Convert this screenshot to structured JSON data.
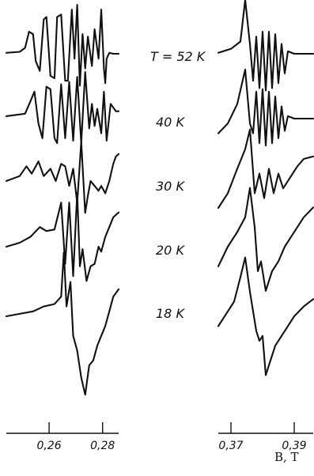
{
  "chart_data": {
    "type": "line",
    "panels": [
      {
        "name": "low-field",
        "xlim": [
          0.244,
          0.286
        ],
        "x_ticks": [
          0.26,
          0.28
        ],
        "tick_labels": [
          "0,26",
          "0,28"
        ],
        "xlabel": "",
        "series": [
          {
            "name": "T = 52 K",
            "x": [
              0.244,
              0.249,
              0.251,
              0.2525,
              0.254,
              0.255,
              0.2565,
              0.258,
              0.259,
              0.2605,
              0.262,
              0.263,
              0.2645,
              0.266,
              0.267,
              0.2685,
              0.2695,
              0.2705,
              0.2715,
              0.2725,
              0.2735,
              0.2745,
              0.276,
              0.277,
              0.2785,
              0.2795,
              0.2805,
              0.281,
              0.2815,
              0.2825,
              0.284,
              0.286
            ],
            "y": [
              0.02,
              0.04,
              0.12,
              0.45,
              0.4,
              -0.15,
              -0.35,
              0.7,
              0.75,
              -0.45,
              -0.5,
              0.75,
              0.8,
              -0.55,
              -0.55,
              0.9,
              -0.1,
              1.0,
              -0.65,
              0.4,
              -0.3,
              0.35,
              -0.25,
              0.5,
              -0.1,
              0.9,
              -0.3,
              -0.6,
              -0.1,
              0.02,
              0.0,
              0.0
            ]
          },
          {
            "name": "40 K",
            "x": [
              0.244,
              0.251,
              0.253,
              0.2545,
              0.256,
              0.2575,
              0.259,
              0.2605,
              0.262,
              0.263,
              0.2645,
              0.266,
              0.2675,
              0.269,
              0.2705,
              0.272,
              0.2735,
              0.275,
              0.276,
              0.277,
              0.278,
              0.2795,
              0.2805,
              0.2815,
              0.283,
              0.285,
              0.286
            ],
            "y": [
              0.05,
              0.1,
              0.35,
              0.55,
              -0.1,
              -0.4,
              0.65,
              0.6,
              -0.4,
              -0.5,
              0.7,
              -0.4,
              0.75,
              -0.45,
              0.85,
              -0.5,
              0.95,
              -0.2,
              0.3,
              -0.15,
              0.2,
              -0.3,
              0.55,
              -0.45,
              0.3,
              0.15,
              0.15
            ]
          },
          {
            "name": "30 K",
            "x": [
              0.244,
              0.249,
              0.2515,
              0.2535,
              0.256,
              0.258,
              0.2605,
              0.2625,
              0.2645,
              0.266,
              0.2675,
              0.269,
              0.2705,
              0.272,
              0.2735,
              0.2745,
              0.2755,
              0.277,
              0.2785,
              0.2795,
              0.281,
              0.2825,
              0.284,
              0.285,
              0.286
            ],
            "y": [
              0.05,
              0.15,
              0.35,
              0.2,
              0.45,
              0.15,
              0.3,
              0.05,
              0.4,
              0.35,
              -0.05,
              0.3,
              -0.4,
              0.85,
              -0.6,
              -0.25,
              0.05,
              -0.05,
              -0.15,
              -0.05,
              -0.2,
              0.05,
              0.4,
              0.55,
              0.6
            ]
          },
          {
            "name": "20 K",
            "x": [
              0.244,
              0.249,
              0.253,
              0.2565,
              0.259,
              0.262,
              0.2645,
              0.266,
              0.2675,
              0.269,
              0.2705,
              0.2715,
              0.2725,
              0.274,
              0.2755,
              0.277,
              0.2785,
              0.2795,
              0.281,
              0.2825,
              0.284,
              0.286
            ],
            "y": [
              0.0,
              0.08,
              0.2,
              0.4,
              0.32,
              0.35,
              0.9,
              -0.35,
              0.9,
              -0.6,
              1.1,
              -0.4,
              -0.05,
              -0.7,
              -0.4,
              -0.35,
              0.0,
              -0.1,
              0.2,
              0.4,
              0.6,
              0.7
            ]
          },
          {
            "name": "18 K",
            "x": [
              0.244,
              0.249,
              0.254,
              0.258,
              0.262,
              0.2645,
              0.2655,
              0.2665,
              0.268,
              0.269,
              0.2705,
              0.272,
              0.2735,
              0.275,
              0.2765,
              0.278,
              0.2795,
              0.281,
              0.2825,
              0.284,
              0.286
            ],
            "y": [
              0.0,
              0.05,
              0.1,
              0.2,
              0.25,
              0.4,
              1.3,
              0.2,
              0.7,
              -0.4,
              -0.7,
              -1.25,
              -1.6,
              -1.0,
              -0.9,
              -0.6,
              -0.4,
              -0.2,
              0.1,
              0.4,
              0.55
            ]
          }
        ]
      },
      {
        "name": "high-field",
        "xlim": [
          0.366,
          0.396
        ],
        "x_ticks": [
          0.37,
          0.39
        ],
        "tick_labels": [
          "0,37",
          "0,39"
        ],
        "xlabel": "B, T",
        "series": [
          {
            "name": "T = 52 K",
            "x": [
              0.366,
              0.37,
              0.373,
              0.3745,
              0.376,
              0.377,
              0.378,
              0.379,
              0.38,
              0.381,
              0.382,
              0.383,
              0.384,
              0.385,
              0.386,
              0.387,
              0.388,
              0.39,
              0.393,
              0.396
            ],
            "y": [
              0.02,
              0.1,
              0.25,
              1.1,
              0.2,
              -0.55,
              0.35,
              -0.7,
              0.45,
              -0.75,
              0.45,
              -0.7,
              0.4,
              -0.6,
              0.2,
              -0.4,
              0.05,
              0.0,
              0.0,
              0.0
            ]
          },
          {
            "name": "40 K",
            "x": [
              0.366,
              0.369,
              0.372,
              0.3745,
              0.376,
              0.377,
              0.378,
              0.379,
              0.38,
              0.381,
              0.382,
              0.383,
              0.384,
              0.385,
              0.386,
              0.387,
              0.388,
              0.39,
              0.393,
              0.396
            ],
            "y": [
              -0.3,
              -0.1,
              0.3,
              1.0,
              -0.1,
              -0.3,
              0.55,
              -0.5,
              0.6,
              -0.55,
              0.55,
              -0.5,
              0.45,
              -0.4,
              0.25,
              -0.25,
              0.05,
              0.0,
              0.0,
              0.0
            ]
          },
          {
            "name": "30 K",
            "x": [
              0.366,
              0.369,
              0.372,
              0.3745,
              0.376,
              0.3775,
              0.379,
              0.3805,
              0.382,
              0.3835,
              0.385,
              0.3865,
              0.388,
              0.3895,
              0.391,
              0.393,
              0.396
            ],
            "y": [
              -0.5,
              -0.2,
              0.3,
              0.7,
              1.1,
              -0.2,
              0.2,
              -0.3,
              0.3,
              -0.2,
              0.2,
              -0.1,
              0.05,
              0.2,
              0.35,
              0.5,
              0.55
            ]
          },
          {
            "name": "20 K",
            "x": [
              0.366,
              0.369,
              0.372,
              0.3745,
              0.376,
              0.3775,
              0.3785,
              0.3795,
              0.381,
              0.383,
              0.385,
              0.387,
              0.389,
              0.391,
              0.393,
              0.396
            ],
            "y": [
              -0.4,
              0.0,
              0.3,
              0.6,
              1.2,
              0.4,
              -0.5,
              -0.3,
              -0.9,
              -0.5,
              -0.3,
              0.0,
              0.2,
              0.4,
              0.6,
              0.8
            ]
          },
          {
            "name": "18 K",
            "x": [
              0.366,
              0.369,
              0.371,
              0.373,
              0.3745,
              0.376,
              0.377,
              0.378,
              0.379,
              0.38,
              0.381,
              0.382,
              0.384,
              0.386,
              0.388,
              0.39,
              0.393,
              0.396
            ],
            "y": [
              -0.2,
              0.1,
              0.3,
              0.8,
              1.2,
              0.5,
              0.1,
              -0.3,
              -0.5,
              -0.4,
              -1.2,
              -1.0,
              -0.6,
              -0.4,
              -0.2,
              0.0,
              0.2,
              0.35
            ]
          }
        ]
      }
    ]
  },
  "temperature_labels": [
    "T = 52 K",
    "40 K",
    "30 K",
    "20 K",
    "18 K"
  ]
}
